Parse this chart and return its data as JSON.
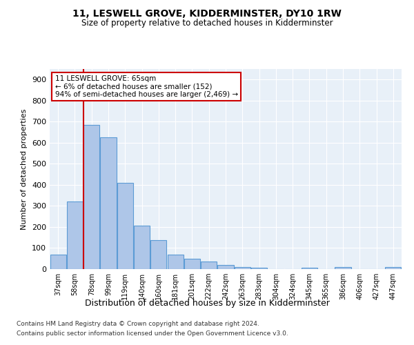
{
  "title": "11, LESWELL GROVE, KIDDERMINSTER, DY10 1RW",
  "subtitle": "Size of property relative to detached houses in Kidderminster",
  "xlabel": "Distribution of detached houses by size in Kidderminster",
  "ylabel": "Number of detached properties",
  "categories": [
    "37sqm",
    "58sqm",
    "78sqm",
    "99sqm",
    "119sqm",
    "140sqm",
    "160sqm",
    "181sqm",
    "201sqm",
    "222sqm",
    "242sqm",
    "263sqm",
    "283sqm",
    "304sqm",
    "324sqm",
    "345sqm",
    "365sqm",
    "386sqm",
    "406sqm",
    "427sqm",
    "447sqm"
  ],
  "values": [
    70,
    320,
    685,
    625,
    410,
    205,
    138,
    70,
    48,
    35,
    20,
    10,
    5,
    0,
    0,
    5,
    0,
    10,
    0,
    0,
    10
  ],
  "bar_color": "#aec6e8",
  "bar_edge_color": "#5b9bd5",
  "property_line_x": 1.5,
  "annotation_title": "11 LESWELL GROVE: 65sqm",
  "annotation_line1": "← 6% of detached houses are smaller (152)",
  "annotation_line2": "94% of semi-detached houses are larger (2,469) →",
  "annotation_box_color": "#ffffff",
  "annotation_box_edge": "#cc0000",
  "property_line_color": "#cc0000",
  "ylim": [
    0,
    950
  ],
  "yticks": [
    0,
    100,
    200,
    300,
    400,
    500,
    600,
    700,
    800,
    900
  ],
  "bg_color": "#e8f0f8",
  "footnote1": "Contains HM Land Registry data © Crown copyright and database right 2024.",
  "footnote2": "Contains public sector information licensed under the Open Government Licence v3.0."
}
